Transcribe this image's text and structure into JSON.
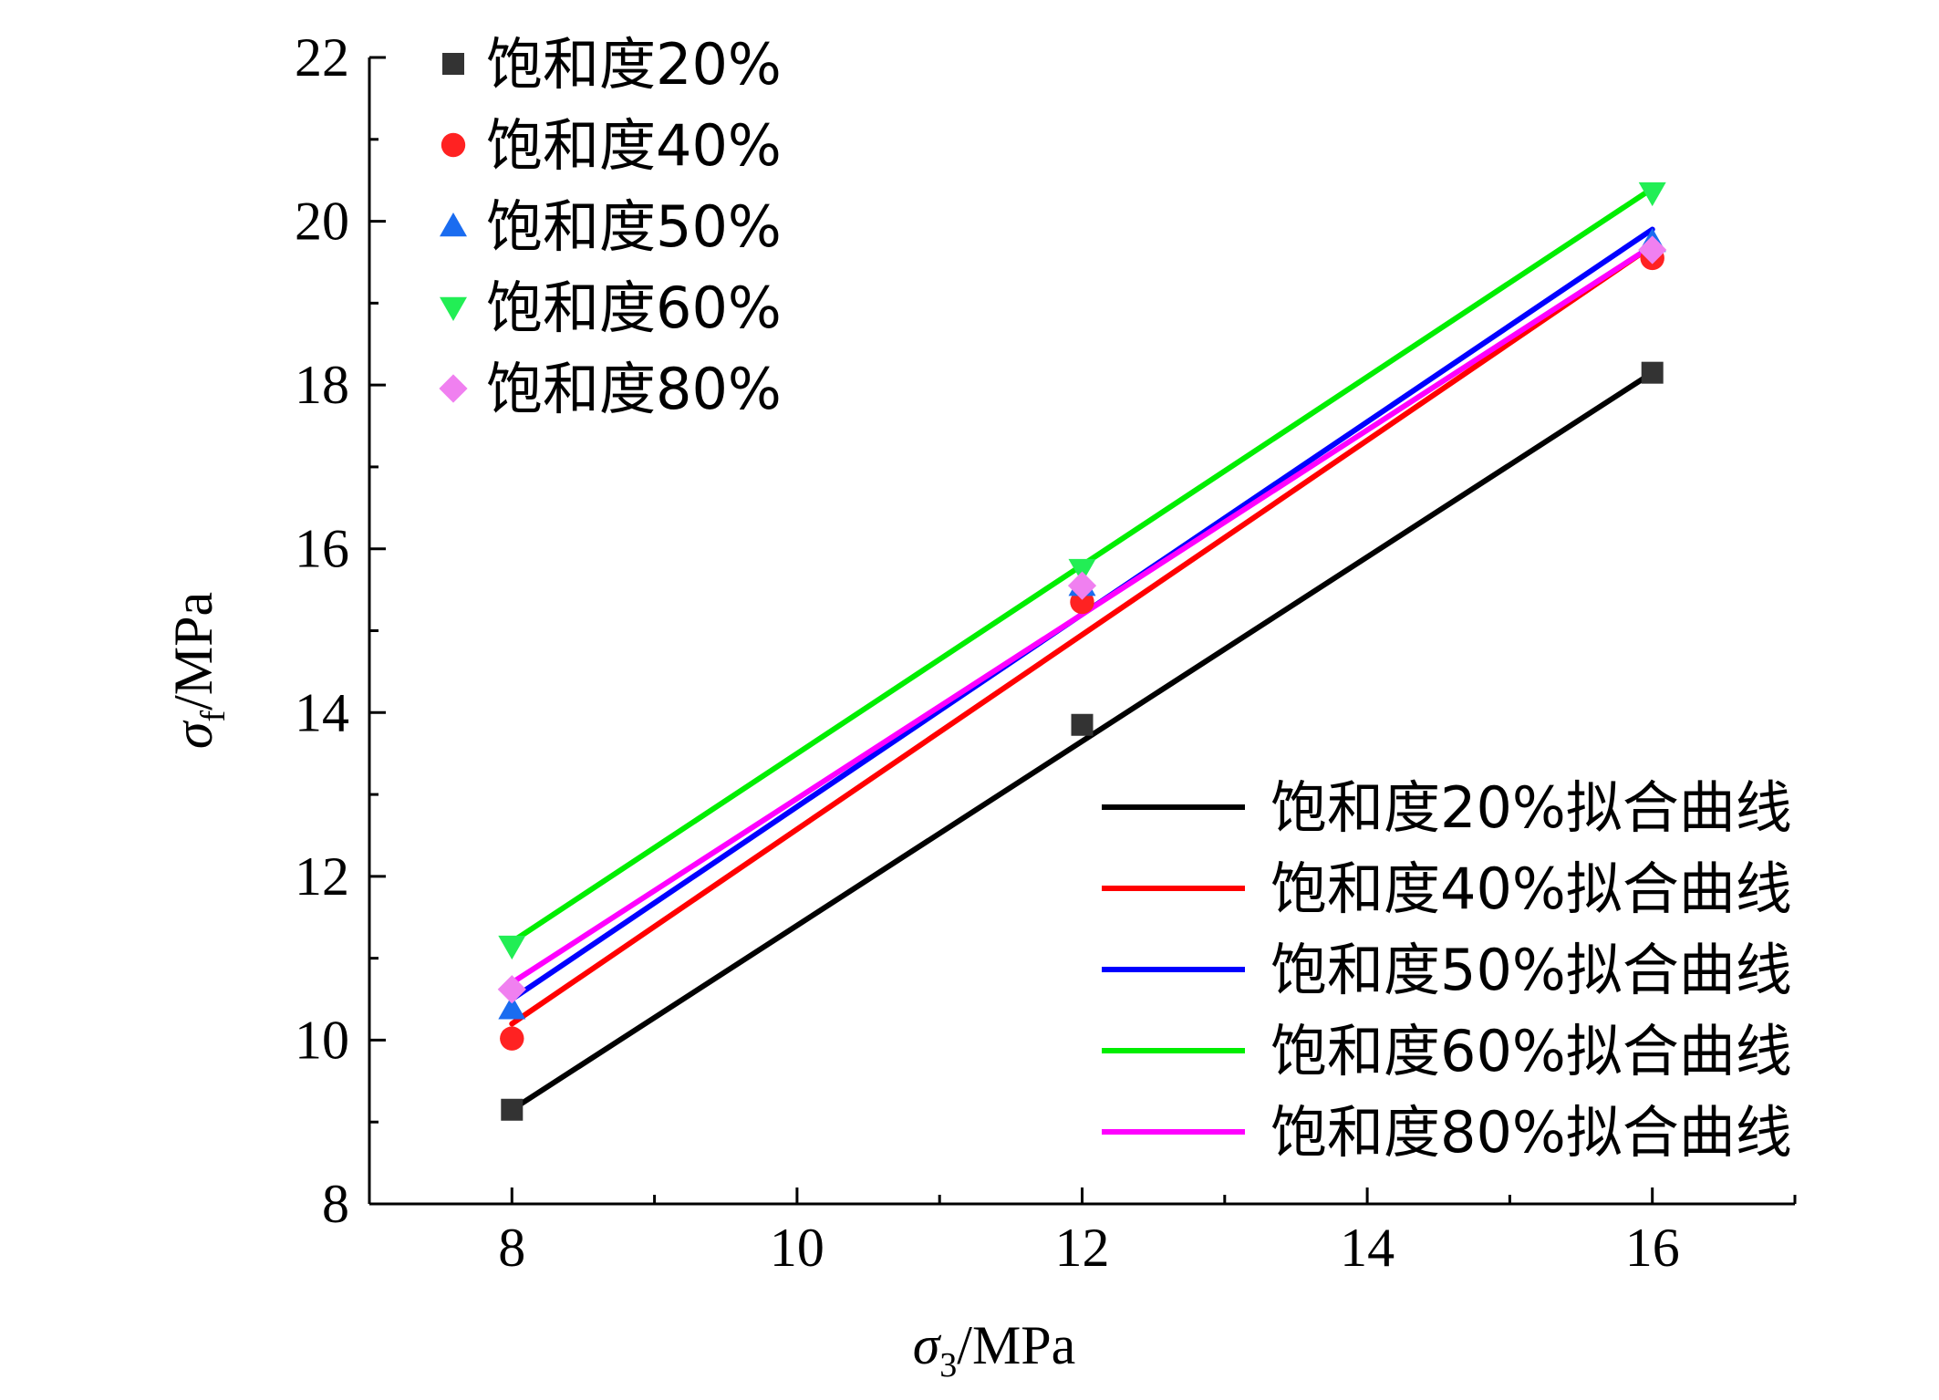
{
  "chart_data": {
    "type": "scatter",
    "title": "",
    "xlabel_symbol": "σ",
    "xlabel_sub": "3",
    "xlabel_unit": "/MPa",
    "ylabel_symbol": "σ",
    "ylabel_sub": "f",
    "ylabel_unit": "/MPa",
    "xlim": [
      7,
      17
    ],
    "ylim": [
      8,
      22
    ],
    "xticks": [
      8,
      10,
      12,
      14,
      16
    ],
    "yticks": [
      8,
      10,
      12,
      14,
      16,
      18,
      20,
      22
    ],
    "grid": false,
    "x": [
      8,
      12,
      16
    ],
    "series": [
      {
        "name": "饱和度20%",
        "marker": "square",
        "color": "#333333",
        "values": [
          9.15,
          13.85,
          18.15
        ]
      },
      {
        "name": "饱和度40%",
        "marker": "circle",
        "color": "#ff2222",
        "values": [
          10.02,
          15.35,
          19.55
        ]
      },
      {
        "name": "饱和度50%",
        "marker": "triangle-up",
        "color": "#1a6cf0",
        "values": [
          10.38,
          15.55,
          19.75
        ]
      },
      {
        "name": "饱和度60%",
        "marker": "triangle-down",
        "color": "#22ee55",
        "values": [
          11.15,
          15.75,
          20.35
        ]
      },
      {
        "name": "饱和度80%",
        "marker": "diamond",
        "color": "#f080f0",
        "values": [
          10.62,
          15.55,
          19.65
        ]
      }
    ],
    "fits": [
      {
        "name": "饱和度20%拟合曲线",
        "color": "#000000",
        "x": [
          8,
          16
        ],
        "y": [
          9.15,
          18.15
        ]
      },
      {
        "name": "饱和度40%拟合曲线",
        "color": "#ff0000",
        "x": [
          8,
          16
        ],
        "y": [
          10.2,
          19.7
        ]
      },
      {
        "name": "饱和度50%拟合曲线",
        "color": "#0000ff",
        "x": [
          8,
          16
        ],
        "y": [
          10.5,
          19.9
        ]
      },
      {
        "name": "饱和度60%拟合曲线",
        "color": "#00ee00",
        "x": [
          8,
          16
        ],
        "y": [
          11.2,
          20.4
        ]
      },
      {
        "name": "饱和度80%拟合曲线",
        "color": "#ff00ff",
        "x": [
          8,
          16
        ],
        "y": [
          10.7,
          19.7
        ]
      }
    ],
    "legend_markers_position": "top-left",
    "legend_lines_position": "bottom-right"
  }
}
